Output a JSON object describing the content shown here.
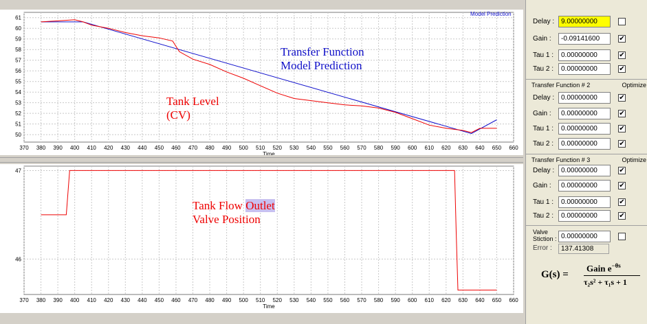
{
  "colors": {
    "cv": "#ee0000",
    "model": "#1010cc",
    "valve": "#ee0000",
    "highlight_field": "#ffff00"
  },
  "top_chart": {
    "legend": "Model Prediction",
    "xlabel": "Time",
    "y_ticks": [
      "61",
      "60",
      "59",
      "58",
      "57",
      "56",
      "55",
      "54",
      "53",
      "52",
      "51",
      "50"
    ],
    "x_ticks": [
      "370",
      "380",
      "390",
      "400",
      "410",
      "420",
      "430",
      "440",
      "450",
      "460",
      "470",
      "480",
      "490",
      "500",
      "510",
      "520",
      "530",
      "540",
      "550",
      "560",
      "570",
      "580",
      "590",
      "600",
      "610",
      "620",
      "630",
      "640",
      "650",
      "660"
    ]
  },
  "bottom_chart": {
    "xlabel": "Time",
    "y_ticks": [
      "47",
      "46"
    ],
    "x_ticks": [
      "370",
      "380",
      "390",
      "400",
      "410",
      "420",
      "430",
      "440",
      "450",
      "460",
      "470",
      "480",
      "490",
      "500",
      "510",
      "520",
      "530",
      "540",
      "550",
      "560",
      "570",
      "580",
      "590",
      "600",
      "610",
      "620",
      "630",
      "640",
      "650",
      "660"
    ]
  },
  "annotations": {
    "transfer_line1": "Transfer Function",
    "transfer_line2": "Model Prediction",
    "tank_line1": "Tank Level",
    "tank_line2": "(CV)",
    "flow_line1_a": "Tank Flow ",
    "flow_line1_b": "Outlet",
    "flow_line2": "Valve Position"
  },
  "chart_data": [
    {
      "type": "line",
      "xlabel": "Time",
      "ylabel": "",
      "xlim": [
        370,
        660
      ],
      "ylim": [
        49.3,
        61.5
      ],
      "legend": "Model Prediction",
      "series": [
        {
          "name": "Model Prediction",
          "x": [
            380,
            405,
            635,
            650
          ],
          "values": [
            60.6,
            60.6,
            50.1,
            51.4
          ]
        },
        {
          "name": "",
          "x": [
            380,
            390,
            400,
            405,
            410,
            420,
            430,
            440,
            450,
            458,
            462,
            470,
            480,
            490,
            500,
            510,
            520,
            530,
            540,
            550,
            560,
            570,
            580,
            590,
            600,
            610,
            620,
            630,
            635,
            640,
            650
          ],
          "values": [
            60.6,
            60.7,
            60.8,
            60.6,
            60.3,
            60.0,
            59.6,
            59.3,
            59.1,
            58.8,
            57.8,
            57.1,
            56.6,
            55.9,
            55.3,
            54.6,
            53.9,
            53.4,
            53.2,
            53.0,
            52.8,
            52.7,
            52.5,
            52.1,
            51.5,
            50.9,
            50.6,
            50.4,
            50.2,
            50.6,
            50.6
          ]
        }
      ]
    },
    {
      "type": "line",
      "xlabel": "Time",
      "ylabel": "",
      "xlim": [
        370,
        660
      ],
      "ylim": [
        45.6,
        47.05
      ],
      "series": [
        {
          "name": "Tank Flow Outlet Valve Position",
          "x": [
            380,
            395,
            397,
            625,
            626,
            627,
            650
          ],
          "values": [
            46.5,
            46.5,
            47.0,
            47.0,
            46.3,
            45.65,
            45.65
          ]
        }
      ]
    }
  ],
  "side": {
    "tf1": {
      "delay_label": "Delay :",
      "delay_value": "9.00000000",
      "delay_check": "",
      "gain_label": "Gain  :",
      "gain_value": "-0.09141600",
      "gain_check": "✔",
      "tau1_label": "Tau 1 :",
      "tau1_value": "0.00000000",
      "tau1_check": "✔",
      "tau2_label": "Tau 2 :",
      "tau2_value": "0.00000000",
      "tau2_check": "✔"
    },
    "tf2": {
      "title": "Transfer Function # 2",
      "optimize": "Optimize",
      "delay_label": "Delay :",
      "delay_value": "0.00000000",
      "delay_check": "✔",
      "gain_label": "Gain  :",
      "gain_value": "0.00000000",
      "gain_check": "✔",
      "tau1_label": "Tau 1 :",
      "tau1_value": "0.00000000",
      "tau1_check": "✔",
      "tau2_label": "Tau 2 :",
      "tau2_value": "0.00000000",
      "tau2_check": "✔"
    },
    "tf3": {
      "title": "Transfer Function # 3",
      "optimize": "Optimize",
      "delay_label": "Delay :",
      "delay_value": "0.00000000",
      "delay_check": "✔",
      "gain_label": "Gain  :",
      "gain_value": "0.00000000",
      "gain_check": "✔",
      "tau1_label": "Tau 1 :",
      "tau1_value": "0.00000000",
      "tau1_check": "✔",
      "tau2_label": "Tau 2 :",
      "tau2_value": "0.00000000",
      "tau2_check": "✔"
    },
    "valve": {
      "label1": "Valve",
      "label2": "Stiction :",
      "value": "0.00000000",
      "check": ""
    },
    "error": {
      "label": "Error :",
      "value": "137.41308"
    },
    "formula": {
      "lhs": "G(s) =",
      "num": "Gain e",
      "exp": "−θs",
      "den": "τ₂s² + τ₁s + 1"
    }
  }
}
